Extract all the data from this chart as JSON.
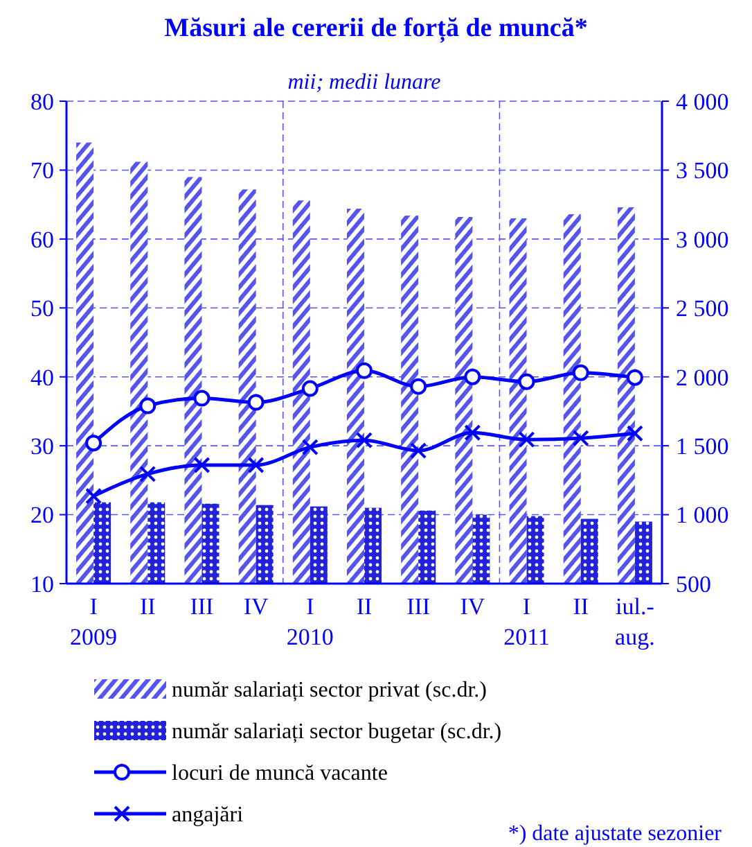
{
  "chart_data": {
    "type": "bar",
    "title": "Măsuri ale cererii de forță de muncă*",
    "subtitle": "mii; medii lunare",
    "annotations": [
      "*) date ajustate sezonier"
    ],
    "categories": [
      "I\n2009",
      "II",
      "III",
      "IV",
      "I\n2010",
      "II",
      "III",
      "IV",
      "I\n2011",
      "II",
      "iul.-\naug."
    ],
    "ylim": [
      10,
      80
    ],
    "yticks": [
      10,
      20,
      30,
      40,
      50,
      60,
      70,
      80
    ],
    "y2lim": [
      500,
      4000
    ],
    "y2ticks": [
      {
        "value": 500,
        "label": "500"
      },
      {
        "value": 1000,
        "label": "1 000"
      },
      {
        "value": 1500,
        "label": "1 500"
      },
      {
        "value": 2000,
        "label": "2 000"
      },
      {
        "value": 2500,
        "label": "2 500"
      },
      {
        "value": 3000,
        "label": "3 000"
      },
      {
        "value": 3500,
        "label": "3 500"
      },
      {
        "value": 4000,
        "label": "4 000"
      }
    ],
    "grid": true,
    "legend": "bottom",
    "series": [
      {
        "name": "număr salariați sector privat (sc.dr.)",
        "axis": "y2",
        "color": "#5555ee",
        "values": [
          3700,
          3560,
          3450,
          3360,
          3280,
          3220,
          3170,
          3160,
          3150,
          3180,
          3230
        ]
      },
      {
        "name": "număr salariați sector bugetar (sc.dr.)",
        "axis": "y2",
        "color": "#2222dd",
        "values": [
          1090,
          1090,
          1080,
          1070,
          1060,
          1050,
          1030,
          1000,
          990,
          970,
          950
        ]
      },
      {
        "name": "locuri de muncă vacante",
        "type": "line",
        "marker": "circle",
        "color": "#0000ff",
        "values": [
          30.4,
          35.8,
          36.9,
          36.3,
          38.3,
          40.9,
          38.6,
          40.0,
          39.3,
          40.6,
          39.9
        ]
      },
      {
        "name": "angajări",
        "type": "line",
        "marker": "cross",
        "color": "#0000ff",
        "values": [
          22.7,
          25.9,
          27.2,
          27.2,
          29.8,
          30.8,
          29.3,
          31.9,
          30.9,
          31.1,
          31.8
        ]
      }
    ]
  }
}
